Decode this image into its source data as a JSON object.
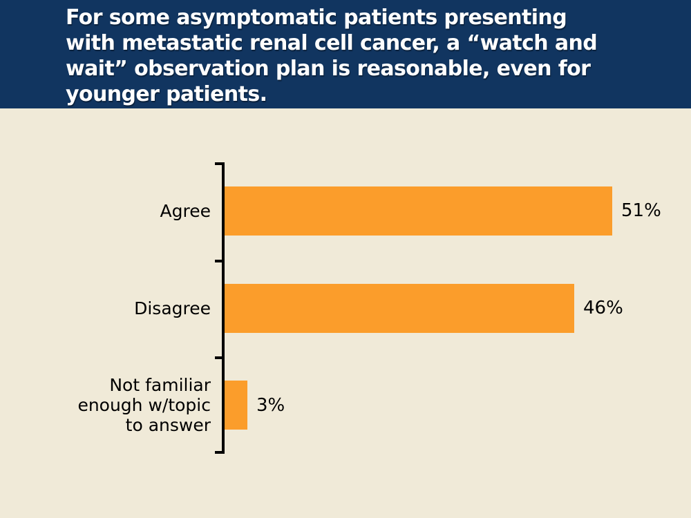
{
  "header": {
    "title": "For some asymptomatic patients presenting\nwith metastatic renal cell cancer, a “watch and\nwait” observation plan is reasonable, even for\nyounger patients."
  },
  "chart_data": {
    "type": "bar",
    "orientation": "horizontal",
    "title": "",
    "categories": [
      "Agree",
      "Disagree",
      "Not familiar\nenough w/topic\nto answer"
    ],
    "values": [
      51,
      46,
      3
    ],
    "value_labels": [
      "51%",
      "46%",
      "3%"
    ],
    "xlim": [
      0,
      55
    ],
    "grid": false,
    "legend": false,
    "bar_color": "#FB9D2B",
    "axis_color": "#000000",
    "background_color": "#F0EAD8",
    "header_color": "#113560",
    "title_text_color": "#FFFFFF",
    "label_text_color": "#000000"
  }
}
